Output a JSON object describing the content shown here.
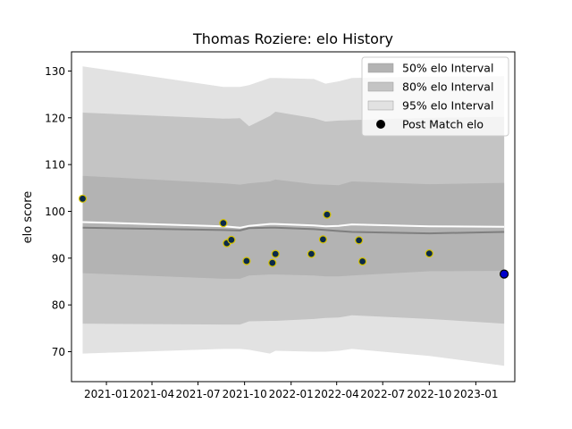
{
  "chart_data": {
    "type": "scatter",
    "title": "Thomas Roziere: elo History",
    "xlabel": "",
    "ylabel": "elo score",
    "x_range": [
      "2020-10-24",
      "2023-03-19"
    ],
    "ylim": [
      63.6,
      134.1
    ],
    "x_ticks": [
      "2021-01-01",
      "2021-04-01",
      "2021-07-01",
      "2021-10-01",
      "2022-01-01",
      "2022-04-01",
      "2022-07-01",
      "2022-10-01",
      "2023-01-01"
    ],
    "x_tick_labels": [
      "2021-01",
      "2021-04",
      "2021-07",
      "2021-10",
      "2022-01",
      "2022-04",
      "2022-07",
      "2022-10",
      "2023-01"
    ],
    "y_ticks": [
      70,
      80,
      90,
      100,
      110,
      120,
      130
    ],
    "grid": false,
    "legend_position": "top-right",
    "legend": [
      {
        "label": "50% elo Interval",
        "color": "#b3b3b3",
        "kind": "patch"
      },
      {
        "label": "80% elo Interval",
        "color": "#c4c4c4",
        "kind": "patch"
      },
      {
        "label": "95% elo Interval",
        "color": "#e2e2e2",
        "kind": "patch"
      },
      {
        "label": "Post Match elo",
        "color": "#000000",
        "kind": "marker"
      }
    ],
    "bands": {
      "dates": [
        "2020-11-15",
        "2021-08-20",
        "2021-09-22",
        "2021-10-10",
        "2021-11-20",
        "2021-12-01",
        "2022-02-15",
        "2022-03-10",
        "2022-04-05",
        "2022-05-01",
        "2022-10-01",
        "2023-02-26"
      ],
      "p95_upper": [
        131.0,
        126.6,
        126.6,
        127.0,
        128.5,
        128.5,
        128.3,
        127.3,
        127.8,
        128.5,
        128.8,
        128.9
      ],
      "p80_upper": [
        121.1,
        119.8,
        119.9,
        118.2,
        120.4,
        121.3,
        119.9,
        119.2,
        119.4,
        119.5,
        120.0,
        120.2
      ],
      "p50_upper": [
        107.6,
        106.0,
        105.7,
        106.0,
        106.4,
        106.8,
        105.8,
        105.7,
        105.6,
        106.4,
        105.8,
        106.1
      ],
      "p50_lower": [
        86.8,
        85.6,
        85.6,
        86.3,
        86.5,
        86.5,
        86.3,
        86.1,
        86.1,
        86.3,
        87.2,
        87.3
      ],
      "p80_lower": [
        76.0,
        75.8,
        75.8,
        76.5,
        76.6,
        76.6,
        77.0,
        77.2,
        77.3,
        77.8,
        77.0,
        76.0
      ],
      "p95_lower": [
        69.6,
        70.6,
        70.6,
        70.4,
        69.6,
        70.2,
        70.0,
        70.0,
        70.2,
        70.6,
        69.1,
        67.0
      ],
      "median": [
        96.5,
        96.0,
        95.9,
        96.4,
        96.5,
        96.5,
        96.2,
        96.0,
        95.8,
        95.6,
        95.3,
        95.6
      ],
      "mean": [
        97.7,
        96.8,
        96.5,
        96.9,
        97.3,
        97.3,
        97.0,
        96.8,
        96.9,
        97.2,
        96.8,
        96.7
      ]
    },
    "post_match": [
      {
        "x": "2020-11-15",
        "y": 102.7
      },
      {
        "x": "2021-08-20",
        "y": 97.5
      },
      {
        "x": "2021-08-27",
        "y": 93.2
      },
      {
        "x": "2021-09-05",
        "y": 93.9
      },
      {
        "x": "2021-10-05",
        "y": 89.4
      },
      {
        "x": "2021-11-25",
        "y": 89.0
      },
      {
        "x": "2021-12-01",
        "y": 90.9
      },
      {
        "x": "2022-02-10",
        "y": 90.9
      },
      {
        "x": "2022-03-05",
        "y": 94.0
      },
      {
        "x": "2022-03-13",
        "y": 99.3
      },
      {
        "x": "2022-05-15",
        "y": 93.8
      },
      {
        "x": "2022-05-22",
        "y": 89.3
      },
      {
        "x": "2022-10-01",
        "y": 91.0
      },
      {
        "x": "2023-02-26",
        "y": 86.6
      }
    ],
    "colors": {
      "band95": "#e2e2e2",
      "band80": "#c4c4c4",
      "band50": "#b3b3b3",
      "median": "#7f7f7f",
      "mean": "#ffffff",
      "point_fill": "#0b2a4a",
      "point_edge": "#d4c200",
      "last_point_fill": "#0000cc",
      "last_point_edge": "#000000"
    }
  }
}
